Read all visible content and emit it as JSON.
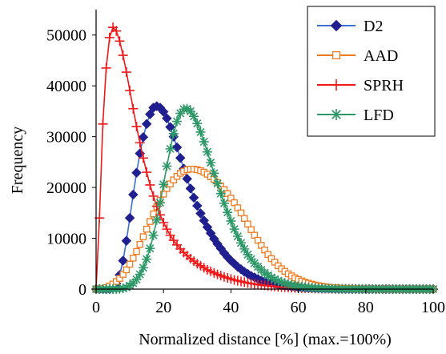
{
  "chart_data": {
    "type": "line",
    "title": "",
    "xlabel": "Normalized distance [%] (max.=100%)",
    "ylabel": "Frequency",
    "xlim": [
      0,
      100
    ],
    "ylim": [
      0,
      55000
    ],
    "x_ticks": [
      0,
      20,
      40,
      60,
      80,
      100
    ],
    "y_ticks": [
      0,
      10000,
      20000,
      30000,
      40000,
      50000
    ],
    "grid": false,
    "legend_position": "top-right",
    "series": [
      {
        "name": "D2",
        "color": "#1f1f8f",
        "line_color": "#3a6fd8",
        "marker": "diamond",
        "x": [
          0,
          1,
          2,
          3,
          4,
          5,
          6,
          7,
          8,
          9,
          10,
          11,
          12,
          13,
          14,
          15,
          16,
          17,
          18,
          19,
          20,
          21,
          22,
          23,
          24,
          25,
          26,
          27,
          28,
          29,
          30,
          31,
          32,
          33,
          34,
          35,
          36,
          37,
          38,
          39,
          40,
          41,
          42,
          43,
          44,
          45,
          46,
          47,
          48,
          49,
          50,
          51,
          52,
          53,
          54,
          55,
          56,
          57,
          58,
          59,
          60,
          61,
          62,
          63,
          64,
          65,
          66,
          67,
          68,
          69,
          70,
          71,
          72,
          73,
          74,
          75,
          76,
          77,
          78,
          79,
          80,
          81,
          82,
          83,
          84,
          85,
          86,
          87,
          88,
          89,
          90,
          91,
          92,
          93,
          94,
          95,
          96,
          97,
          98,
          99,
          100
        ],
        "values": [
          0,
          0,
          0,
          0,
          0,
          300,
          1100,
          2800,
          5600,
          9500,
          14000,
          18600,
          22900,
          26700,
          29900,
          32500,
          34400,
          35700,
          36000,
          35700,
          34900,
          33600,
          31900,
          30000,
          27900,
          25800,
          23700,
          21700,
          19800,
          18000,
          16400,
          14900,
          13500,
          12200,
          11000,
          9900,
          8900,
          8000,
          7100,
          6300,
          5600,
          5000,
          4400,
          3900,
          3400,
          3000,
          2600,
          2300,
          2000,
          1700,
          1500,
          1300,
          1150,
          1000,
          860,
          740,
          640,
          550,
          470,
          400,
          340,
          290,
          250,
          210,
          180,
          150,
          130,
          110,
          90,
          80,
          60,
          50,
          40,
          35,
          30,
          25,
          20,
          15,
          12,
          10,
          8,
          6,
          5,
          4,
          3,
          2,
          2,
          1,
          1,
          1,
          0,
          0,
          0,
          0,
          0,
          0,
          0,
          0,
          0,
          0,
          0
        ]
      },
      {
        "name": "AAD",
        "color": "#f07a1e",
        "line_color": "#f07a1e",
        "marker": "square",
        "x": [
          0,
          1,
          2,
          3,
          4,
          5,
          6,
          7,
          8,
          9,
          10,
          11,
          12,
          13,
          14,
          15,
          16,
          17,
          18,
          19,
          20,
          21,
          22,
          23,
          24,
          25,
          26,
          27,
          28,
          29,
          30,
          31,
          32,
          33,
          34,
          35,
          36,
          37,
          38,
          39,
          40,
          41,
          42,
          43,
          44,
          45,
          46,
          47,
          48,
          49,
          50,
          51,
          52,
          53,
          54,
          55,
          56,
          57,
          58,
          59,
          60,
          61,
          62,
          63,
          64,
          65,
          66,
          67,
          68,
          69,
          70,
          71,
          72,
          73,
          74,
          75,
          76,
          77,
          78,
          79,
          80,
          81,
          82,
          83,
          84,
          85,
          86,
          87,
          88,
          89,
          90,
          91,
          92,
          93,
          94,
          95,
          96,
          97,
          98,
          99,
          100
        ],
        "values": [
          0,
          50,
          150,
          300,
          600,
          1000,
          1500,
          2100,
          2900,
          3800,
          4900,
          6100,
          7400,
          8800,
          10300,
          11800,
          13300,
          14800,
          16200,
          17500,
          18700,
          19800,
          20700,
          21500,
          22200,
          22800,
          23200,
          23500,
          23600,
          23600,
          23500,
          23300,
          23000,
          22600,
          22100,
          21600,
          21000,
          20300,
          19600,
          18800,
          17900,
          17000,
          16000,
          15000,
          13900,
          12800,
          11700,
          10600,
          9600,
          8600,
          7700,
          6800,
          6000,
          5300,
          4600,
          4000,
          3500,
          3000,
          2600,
          2200,
          1900,
          1600,
          1350,
          1150,
          960,
          800,
          670,
          560,
          460,
          380,
          310,
          250,
          200,
          160,
          130,
          100,
          80,
          60,
          50,
          40,
          30,
          25,
          20,
          15,
          10,
          8,
          6,
          5,
          4,
          3,
          2,
          2,
          1,
          1,
          1,
          0,
          0,
          0,
          0,
          0,
          0
        ]
      },
      {
        "name": "SPRH",
        "color": "#f01818",
        "line_color": "#f01818",
        "marker": "plus",
        "x": [
          0,
          1,
          2,
          3,
          4,
          5,
          6,
          7,
          8,
          9,
          10,
          11,
          12,
          13,
          14,
          15,
          16,
          17,
          18,
          19,
          20,
          21,
          22,
          23,
          24,
          25,
          26,
          27,
          28,
          29,
          30,
          31,
          32,
          33,
          34,
          35,
          36,
          37,
          38,
          39,
          40,
          41,
          42,
          43,
          44,
          45,
          46,
          47,
          48,
          49,
          50,
          51,
          52,
          53,
          54,
          55,
          56,
          57,
          58,
          59,
          60,
          61,
          62,
          63,
          64,
          65,
          66,
          67,
          68,
          69,
          70,
          71,
          72,
          73,
          74,
          75,
          76,
          77,
          78,
          79,
          80,
          81,
          82,
          83,
          84,
          85,
          86,
          87,
          88,
          89,
          90,
          91,
          92,
          93,
          94,
          95,
          96,
          97,
          98,
          99,
          100
        ],
        "values": [
          0,
          14000,
          32500,
          43500,
          49500,
          51500,
          50800,
          48800,
          46000,
          42700,
          39100,
          35500,
          32000,
          28800,
          25800,
          23000,
          20500,
          18300,
          16300,
          14600,
          13100,
          11800,
          10600,
          9600,
          8700,
          7900,
          7200,
          6600,
          6000,
          5500,
          5000,
          4600,
          4200,
          3800,
          3500,
          3200,
          2900,
          2650,
          2400,
          2200,
          2000,
          1800,
          1650,
          1500,
          1350,
          1200,
          1100,
          1000,
          900,
          800,
          720,
          650,
          580,
          520,
          460,
          410,
          370,
          330,
          290,
          260,
          230,
          200,
          180,
          160,
          140,
          120,
          110,
          95,
          85,
          75,
          65,
          55,
          50,
          45,
          40,
          35,
          30,
          25,
          20,
          18,
          15,
          13,
          11,
          9,
          8,
          7,
          6,
          5,
          4,
          3,
          3,
          2,
          2,
          1,
          1,
          1,
          0,
          0,
          0,
          0,
          0
        ]
      },
      {
        "name": "LFD",
        "color": "#2e9868",
        "line_color": "#2e9868",
        "marker": "asterisk",
        "x": [
          0,
          1,
          2,
          3,
          4,
          5,
          6,
          7,
          8,
          9,
          10,
          11,
          12,
          13,
          14,
          15,
          16,
          17,
          18,
          19,
          20,
          21,
          22,
          23,
          24,
          25,
          26,
          27,
          28,
          29,
          30,
          31,
          32,
          33,
          34,
          35,
          36,
          37,
          38,
          39,
          40,
          41,
          42,
          43,
          44,
          45,
          46,
          47,
          48,
          49,
          50,
          51,
          52,
          53,
          54,
          55,
          56,
          57,
          58,
          59,
          60,
          61,
          62,
          63,
          64,
          65,
          66,
          67,
          68,
          69,
          70,
          71,
          72,
          73,
          74,
          75,
          76,
          77,
          78,
          79,
          80,
          81,
          82,
          83,
          84,
          85,
          86,
          87,
          88,
          89,
          90,
          91,
          92,
          93,
          94,
          95,
          96,
          97,
          98,
          99,
          100
        ],
        "values": [
          0,
          0,
          0,
          0,
          0,
          0,
          20,
          60,
          150,
          350,
          700,
          1200,
          1900,
          2900,
          4200,
          5900,
          8000,
          10600,
          13600,
          17000,
          20600,
          24200,
          27600,
          30600,
          33000,
          34600,
          35400,
          35500,
          35000,
          34000,
          32600,
          30900,
          29000,
          27000,
          24900,
          22800,
          20800,
          18800,
          16900,
          15100,
          13400,
          11800,
          10400,
          9100,
          7900,
          6800,
          5900,
          5100,
          4400,
          3800,
          3200,
          2700,
          2300,
          1950,
          1650,
          1400,
          1180,
          990,
          830,
          690,
          570,
          470,
          390,
          320,
          260,
          210,
          170,
          140,
          110,
          90,
          70,
          55,
          45,
          35,
          28,
          22,
          17,
          13,
          10,
          8,
          6,
          5,
          4,
          3,
          2,
          2,
          1,
          1,
          1,
          0,
          0,
          0,
          0,
          0,
          0,
          0,
          0,
          0,
          0,
          0,
          0
        ]
      }
    ]
  }
}
